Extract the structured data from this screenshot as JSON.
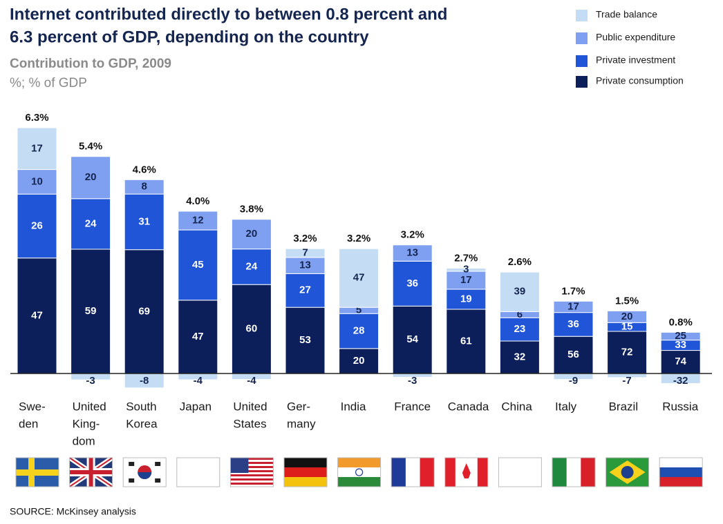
{
  "chart_data": {
    "type": "stacked-bar",
    "title": [
      "Internet contributed directly to between 0.8 percent and",
      "6.3 percent of GDP, depending on the country"
    ],
    "subtitle": "Contribution to GDP, 2009",
    "unit": "%; % of GDP",
    "source": "SOURCE: McKinsey analysis",
    "categories": [
      [
        "Swe-",
        "den"
      ],
      [
        "United",
        "King-",
        "dom"
      ],
      [
        "South",
        "Korea"
      ],
      [
        "Japan"
      ],
      [
        "United",
        "States"
      ],
      [
        "Ger-",
        "many"
      ],
      [
        "India"
      ],
      [
        "France"
      ],
      [
        "Canada"
      ],
      [
        "China"
      ],
      [
        "Italy"
      ],
      [
        "Brazil"
      ],
      [
        "Russia"
      ]
    ],
    "totals": {
      "values": [
        6.3,
        5.4,
        4.6,
        4.0,
        3.8,
        3.2,
        3.2,
        3.2,
        2.7,
        2.6,
        1.7,
        1.5,
        0.8
      ],
      "value_labels": [
        "6.3%",
        "5.4%",
        "4.6%",
        "4.0%",
        "3.8%",
        "3.2%",
        "3.2%",
        "3.2%",
        "2.7%",
        "2.6%",
        "1.7%",
        "1.5%",
        "0.8%"
      ]
    },
    "series": [
      {
        "name": "Private consumption",
        "color": "#0c1f5a",
        "values": [
          47,
          59,
          69,
          47,
          60,
          53,
          20,
          54,
          61,
          32,
          56,
          72,
          74
        ]
      },
      {
        "name": "Private investment",
        "color": "#1f55d6",
        "values": [
          26,
          24,
          31,
          45,
          24,
          27,
          28,
          36,
          19,
          23,
          36,
          15,
          33
        ]
      },
      {
        "name": "Public expenditure",
        "color": "#7f9ff0",
        "values": [
          10,
          20,
          8,
          12,
          20,
          13,
          5,
          13,
          17,
          6,
          17,
          20,
          25
        ]
      },
      {
        "name": "Trade balance",
        "color": "#c5dcf5",
        "values": [
          17,
          -3,
          -8,
          -4,
          -4,
          7,
          47,
          -3,
          3,
          39,
          -9,
          -7,
          -32
        ]
      }
    ]
  }
}
